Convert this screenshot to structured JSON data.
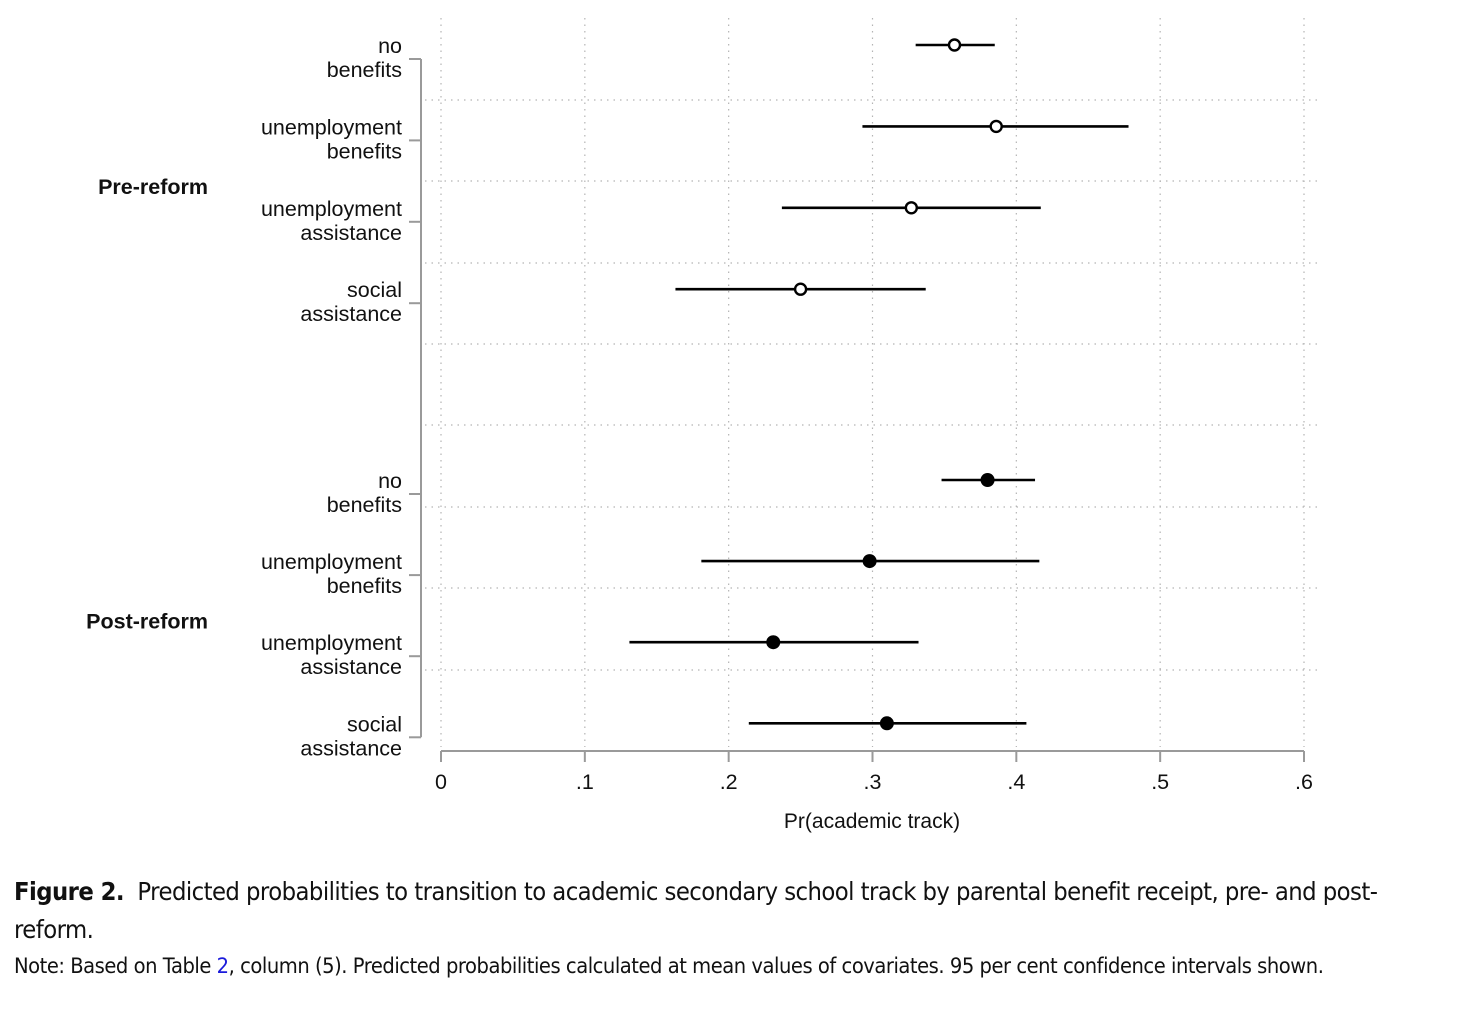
{
  "chart_data": {
    "type": "scatter",
    "subtype": "coefficient-plot-with-confidence-intervals",
    "xlabel": "Pr(academic track)",
    "xlim": [
      0,
      0.6
    ],
    "xticks": [
      0,
      0.1,
      0.2,
      0.3,
      0.4,
      0.5,
      0.6
    ],
    "xtick_labels": [
      "0",
      ".1",
      ".2",
      ".3",
      ".4",
      ".5",
      ".6"
    ],
    "grid": true,
    "groups": [
      {
        "name": "Pre-reform",
        "marker": "hollow-circle",
        "categories": [
          {
            "label_lines": [
              "no",
              "benefits"
            ],
            "estimate": 0.357,
            "ci_low": 0.33,
            "ci_high": 0.385
          },
          {
            "label_lines": [
              "unemployment",
              "benefits"
            ],
            "estimate": 0.386,
            "ci_low": 0.293,
            "ci_high": 0.478
          },
          {
            "label_lines": [
              "unemployment",
              "assistance"
            ],
            "estimate": 0.327,
            "ci_low": 0.237,
            "ci_high": 0.417
          },
          {
            "label_lines": [
              "social",
              "assistance"
            ],
            "estimate": 0.25,
            "ci_low": 0.163,
            "ci_high": 0.337
          }
        ]
      },
      {
        "name": "Post-reform",
        "marker": "filled-circle",
        "categories": [
          {
            "label_lines": [
              "no",
              "benefits"
            ],
            "estimate": 0.38,
            "ci_low": 0.348,
            "ci_high": 0.413
          },
          {
            "label_lines": [
              "unemployment",
              "benefits"
            ],
            "estimate": 0.298,
            "ci_low": 0.181,
            "ci_high": 0.416
          },
          {
            "label_lines": [
              "unemployment",
              "assistance"
            ],
            "estimate": 0.231,
            "ci_low": 0.131,
            "ci_high": 0.332
          },
          {
            "label_lines": [
              "social",
              "assistance"
            ],
            "estimate": 0.31,
            "ci_low": 0.214,
            "ci_high": 0.407
          }
        ]
      }
    ],
    "colors": {
      "marks": "#000000",
      "grid": "#b4b4b4",
      "axis": "#9a9a9a"
    }
  },
  "caption": {
    "figure_label": "Figure 2.",
    "title": "Predicted probabilities to transition to academic secondary school track by parental benefit receipt, pre- and post-reform.",
    "note_prefix": "Note: Based on Table ",
    "note_ref": "2",
    "note_suffix": ", column (5). Predicted probabilities calculated at mean values of covariates. 95 per cent confidence intervals shown.",
    "link_color": "#1a1adb"
  }
}
